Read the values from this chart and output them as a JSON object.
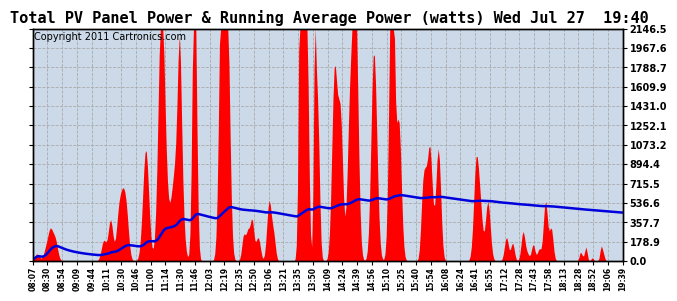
{
  "title": "Total PV Panel Power & Running Average Power (watts) Wed Jul 27  19:40",
  "copyright": "Copyright 2011 Cartronics.com",
  "yticks": [
    0.0,
    178.9,
    357.7,
    536.6,
    715.5,
    894.4,
    1073.2,
    1252.1,
    1431.0,
    1609.9,
    1788.7,
    1967.6,
    2146.5
  ],
  "ymax": 2146.5,
  "bg_color": "#ffffff",
  "plot_bg_color": "#ccd9e8",
  "bar_color": "#ff0000",
  "line_color": "#0000dd",
  "grid_color": "#aaaaaa",
  "title_fontsize": 11,
  "copyright_fontsize": 7
}
